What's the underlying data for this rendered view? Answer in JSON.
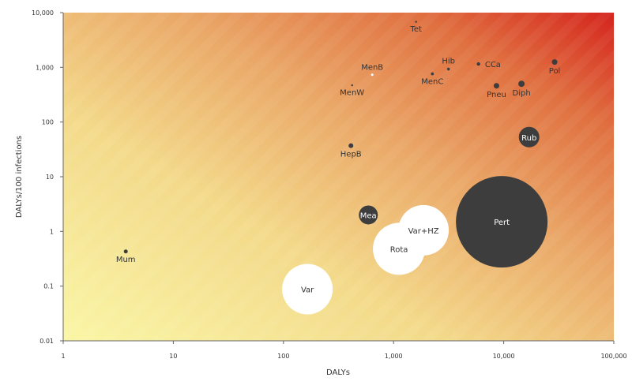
{
  "chart_data": {
    "type": "scatter",
    "subtype": "bubble",
    "xlabel": "DALYs",
    "ylabel": "DALYs/100 infections",
    "xscale": "log",
    "yscale": "log",
    "xlim": [
      1,
      100000
    ],
    "ylim": [
      0.01,
      10000
    ],
    "x_ticks": [
      1,
      10,
      100,
      1000,
      10000,
      100000
    ],
    "x_tick_labels": [
      "1",
      "10",
      "100",
      "1,000",
      "10,000",
      "100,000"
    ],
    "y_ticks": [
      0.01,
      0.1,
      1,
      10,
      100,
      1000,
      10000
    ],
    "y_tick_labels": [
      "0.01",
      "0.1",
      "1",
      "10",
      "100",
      "1,000",
      "10,000"
    ],
    "background": "diagonal gradient from pale yellow (low DALYs, low DALYs/100 infections) to red (high DALYs, high DALYs/100 infections)",
    "colors": {
      "dark": "#3d3d3d",
      "white": "#ffffff",
      "bg_low": "#f8f4a0",
      "bg_mid": "#e8a25e",
      "bg_high": "#d4281f"
    },
    "points": [
      {
        "label": "Tet",
        "x": 1600,
        "y": 6800,
        "size": 1.2,
        "color": "dark",
        "label_pos": "below"
      },
      {
        "label": "MenB",
        "x": 640,
        "y": 730,
        "size": 1.5,
        "color": "white",
        "label_pos": "above"
      },
      {
        "label": "MenW",
        "x": 420,
        "y": 470,
        "size": 1.2,
        "color": "dark",
        "label_pos": "below"
      },
      {
        "label": "Hib",
        "x": 3150,
        "y": 930,
        "size": 1.8,
        "color": "dark",
        "label_pos": "above"
      },
      {
        "label": "MenC",
        "x": 2250,
        "y": 760,
        "size": 1.8,
        "color": "dark",
        "label_pos": "below"
      },
      {
        "label": "CCa",
        "x": 5900,
        "y": 1150,
        "size": 2.2,
        "color": "dark",
        "label_pos": "right"
      },
      {
        "label": "Pol",
        "x": 29000,
        "y": 1250,
        "size": 3.5,
        "color": "dark",
        "label_pos": "below"
      },
      {
        "label": "Pneu",
        "x": 8600,
        "y": 460,
        "size": 3.5,
        "color": "dark",
        "label_pos": "below"
      },
      {
        "label": "Diph",
        "x": 14500,
        "y": 500,
        "size": 4,
        "color": "dark",
        "label_pos": "below"
      },
      {
        "label": "Rub",
        "x": 17000,
        "y": 53,
        "size": 13,
        "color": "dark",
        "label_pos": "center"
      },
      {
        "label": "HepB",
        "x": 410,
        "y": 37,
        "size": 3,
        "color": "dark",
        "label_pos": "below"
      },
      {
        "label": "Mea",
        "x": 590,
        "y": 2.0,
        "size": 12,
        "color": "dark",
        "label_pos": "center"
      },
      {
        "label": "Pert",
        "x": 9600,
        "y": 1.5,
        "size": 58,
        "color": "dark",
        "label_pos": "center"
      },
      {
        "label": "Var+HZ",
        "x": 1870,
        "y": 1.05,
        "size": 32,
        "color": "white",
        "label_pos": "center"
      },
      {
        "label": "Rota",
        "x": 1120,
        "y": 0.48,
        "size": 33,
        "color": "white",
        "label_pos": "center"
      },
      {
        "label": "Mum",
        "x": 3.7,
        "y": 0.43,
        "size": 2.5,
        "color": "dark",
        "label_pos": "below"
      },
      {
        "label": "Var",
        "x": 165,
        "y": 0.088,
        "size": 32,
        "color": "white",
        "label_pos": "center"
      }
    ]
  }
}
